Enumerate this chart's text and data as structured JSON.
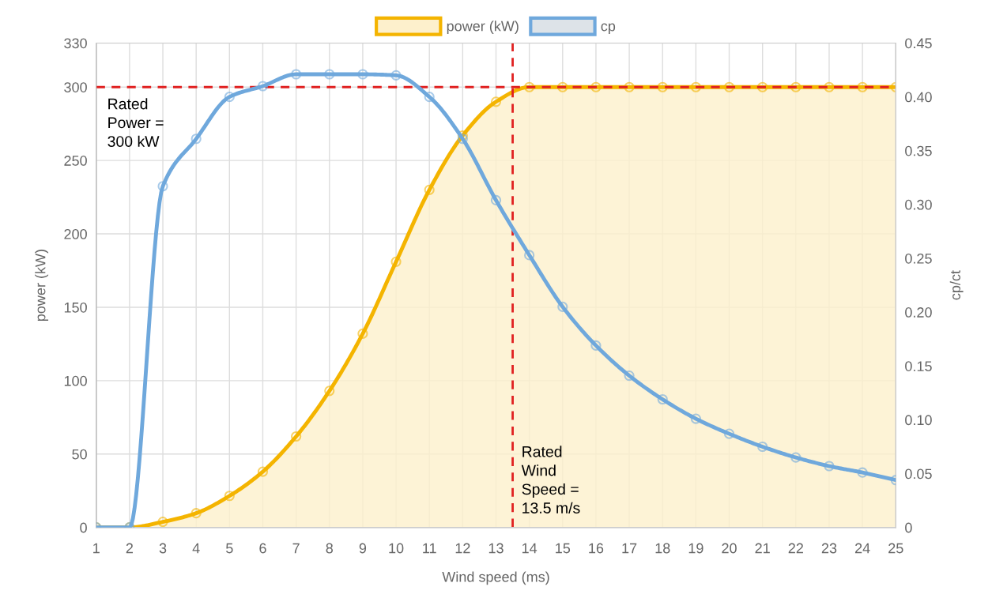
{
  "chart_data": {
    "type": "line",
    "xlabel": "Wind speed (ms)",
    "ylabel": "power (kW)",
    "y2label": "cp/ct",
    "x": [
      1,
      2,
      3,
      4,
      5,
      6,
      7,
      8,
      9,
      10,
      11,
      12,
      13,
      14,
      15,
      16,
      17,
      18,
      19,
      20,
      21,
      22,
      23,
      24,
      25
    ],
    "series": [
      {
        "name": "power (kW)",
        "type": "area",
        "color": "#f4b400",
        "values": [
          0,
          0,
          3.8,
          9.7,
          21.5,
          38,
          62,
          93,
          132,
          181,
          230,
          267,
          290,
          300,
          300,
          300,
          300,
          300,
          300,
          300,
          300,
          300,
          300,
          300,
          300
        ]
      },
      {
        "name": "cp",
        "axis": "y2",
        "color": "#6fa8dc",
        "values": [
          0,
          0,
          0.317,
          0.361,
          0.4,
          0.41,
          0.421,
          0.421,
          0.421,
          0.42,
          0.4,
          0.361,
          0.304,
          0.253,
          0.205,
          0.169,
          0.141,
          0.119,
          0.101,
          0.087,
          0.075,
          0.065,
          0.057,
          0.051,
          0.044
        ]
      }
    ],
    "xlim": [
      1,
      25
    ],
    "xticks": [
      1,
      2,
      3,
      4,
      5,
      6,
      7,
      8,
      9,
      10,
      11,
      12,
      13,
      14,
      15,
      16,
      17,
      18,
      19,
      20,
      21,
      22,
      23,
      24,
      25
    ],
    "ylim": [
      0,
      330
    ],
    "yticks": [
      0,
      50,
      100,
      150,
      200,
      250,
      300,
      330
    ],
    "y2lim": [
      0,
      0.45
    ],
    "y2ticks": [
      0,
      {
        "value": 0.05,
        "label": "0.05"
      },
      {
        "value": 0.1,
        "label": "0.10"
      },
      {
        "value": 0.15,
        "label": "0.15"
      },
      {
        "value": 0.2,
        "label": "0.20"
      },
      {
        "value": 0.25,
        "label": "0.25"
      },
      {
        "value": 0.3,
        "label": "0.30"
      },
      {
        "value": 0.35,
        "label": "0.35"
      },
      {
        "value": 0.4,
        "label": "0.40"
      },
      {
        "value": 0.45,
        "label": "0.45"
      }
    ],
    "ref_lines": [
      {
        "axis": "y",
        "value": 300,
        "label": "Rated\nPower =\n300 kW",
        "color": "#e02020",
        "line_style": "dashed"
      },
      {
        "axis": "x",
        "value": 13.5,
        "label": "Rated\nWind\nSpeed =\n13.5 m/s",
        "color": "#e02020",
        "line_style": "dashed"
      }
    ],
    "grid": true,
    "legend": "top",
    "marker": "circle",
    "line_style": "solid"
  }
}
